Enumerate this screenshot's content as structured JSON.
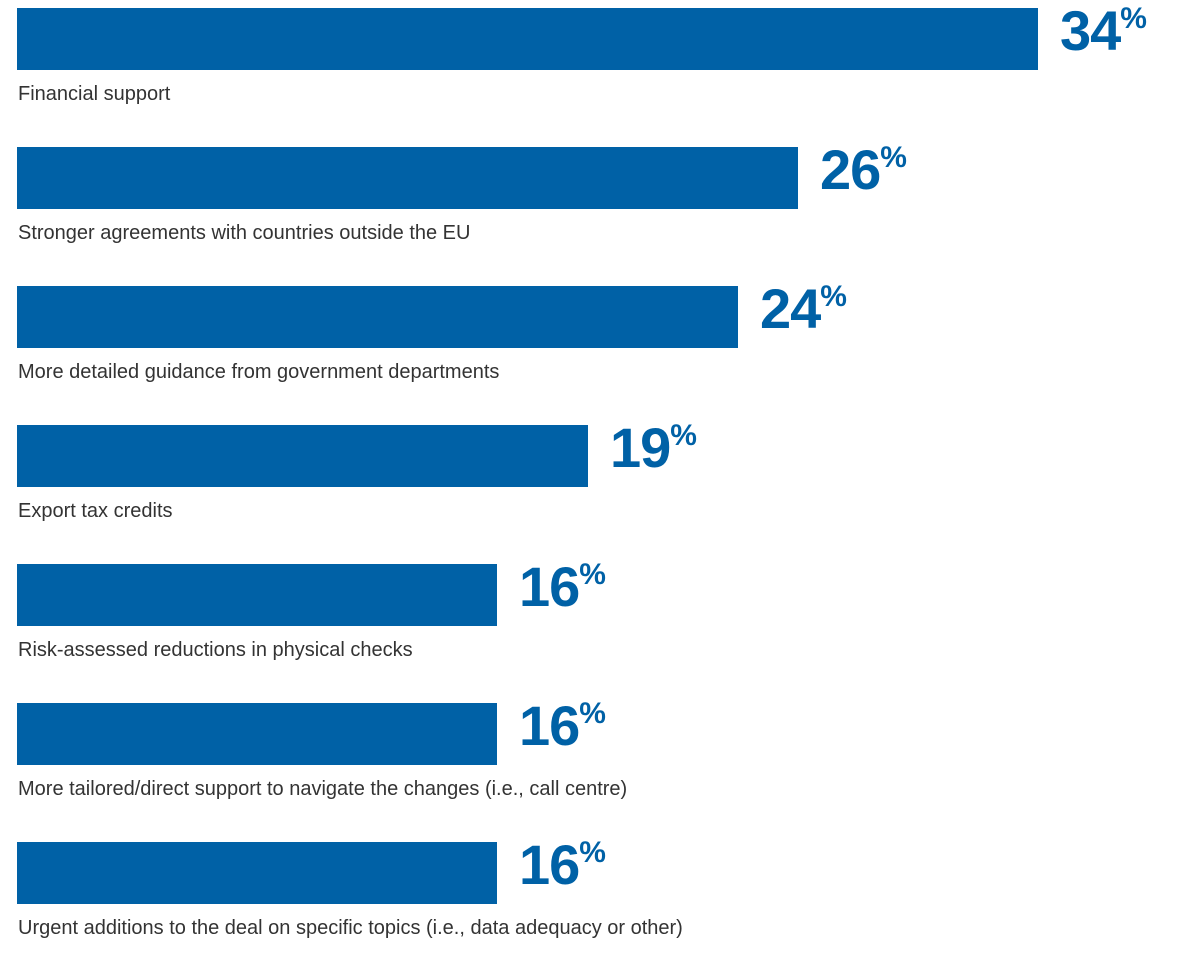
{
  "chart_data": {
    "type": "bar",
    "orientation": "horizontal",
    "categories": [
      "Financial support",
      "Stronger agreements with countries outside the EU",
      "More detailed guidance from government departments",
      "Export tax credits",
      "Risk-assessed reductions in physical checks",
      "More tailored/direct support to navigate the changes (i.e., call centre)",
      "Urgent additions to the deal on specific topics (i.e., data adequacy or other)"
    ],
    "values": [
      34,
      26,
      24,
      19,
      16,
      16,
      16
    ],
    "value_suffix": "%",
    "title": "",
    "xlabel": "",
    "ylabel": "",
    "xlim": [
      0,
      34
    ],
    "grid": false,
    "legend": "none",
    "colors": {
      "bar": "#0061a6",
      "value_label": "#0061a6",
      "category_label": "#333333"
    }
  }
}
